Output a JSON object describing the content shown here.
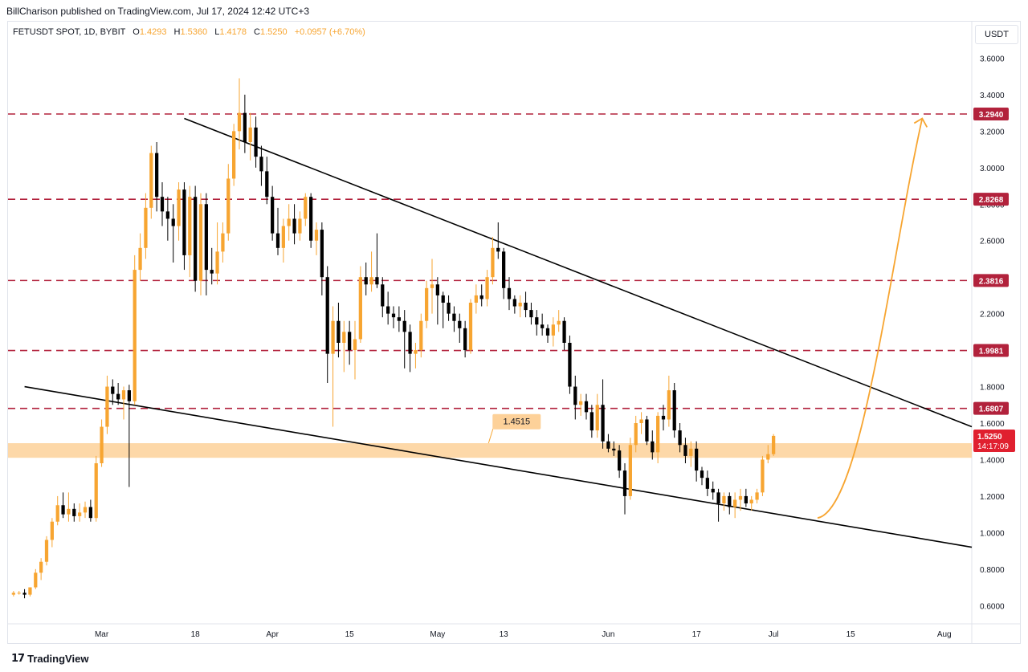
{
  "header": {
    "publisher": "BillCharison published on TradingView.com, Jul 17, 2024 12:42 UTC+3"
  },
  "symbol": {
    "name": "FETUSDT SPOT, 1D, BYBIT",
    "open_label": "O",
    "open": "1.4293",
    "high_label": "H",
    "high": "1.5360",
    "low_label": "L",
    "low": "1.4178",
    "close_label": "C",
    "close": "1.5250",
    "change": "+0.0957 (+6.70%)"
  },
  "unit": "USDT",
  "footer": {
    "brand": "TradingView",
    "logo_glyph": "17"
  },
  "chart_data": {
    "type": "candlestick",
    "y_ticks": [
      "3.6000",
      "3.4000",
      "3.2000",
      "3.0000",
      "2.8000",
      "2.6000",
      "2.4000",
      "2.2000",
      "2.0000",
      "1.8000",
      "1.6000",
      "1.4000",
      "1.2000",
      "1.0000",
      "0.8000",
      "0.6000"
    ],
    "ylim": [
      0.5,
      3.8
    ],
    "x_ticks": [
      {
        "label": "Mar",
        "day": 0
      },
      {
        "label": "18",
        "day": 17
      },
      {
        "label": "Apr",
        "day": 31
      },
      {
        "label": "15",
        "day": 45
      },
      {
        "label": "May",
        "day": 61
      },
      {
        "label": "13",
        "day": 73
      },
      {
        "label": "Jun",
        "day": 92
      },
      {
        "label": "17",
        "day": 108
      },
      {
        "label": "Jul",
        "day": 122
      },
      {
        "label": "15",
        "day": 136
      },
      {
        "label": "Aug",
        "day": 153
      }
    ],
    "x_range_days": [
      -17,
      158
    ],
    "bullish_color": "#f7a531",
    "bearish_color": "#000000",
    "candles_start_day": -16,
    "candles": [
      [
        0.66,
        0.68,
        0.65,
        0.67
      ],
      [
        0.67,
        0.68,
        0.66,
        0.67
      ],
      [
        0.67,
        0.69,
        0.64,
        0.66
      ],
      [
        0.66,
        0.7,
        0.65,
        0.7
      ],
      [
        0.7,
        0.8,
        0.69,
        0.78
      ],
      [
        0.78,
        0.86,
        0.74,
        0.84
      ],
      [
        0.84,
        0.98,
        0.82,
        0.96
      ],
      [
        0.96,
        1.08,
        0.92,
        1.06
      ],
      [
        1.06,
        1.2,
        1.04,
        1.15
      ],
      [
        1.15,
        1.22,
        1.08,
        1.1
      ],
      [
        1.1,
        1.22,
        1.06,
        1.13
      ],
      [
        1.13,
        1.16,
        1.06,
        1.09
      ],
      [
        1.09,
        1.16,
        1.06,
        1.11
      ],
      [
        1.11,
        1.17,
        1.08,
        1.14
      ],
      [
        1.14,
        1.18,
        1.06,
        1.08
      ],
      [
        1.08,
        1.42,
        1.06,
        1.38
      ],
      [
        1.38,
        1.62,
        1.36,
        1.58
      ],
      [
        1.58,
        1.86,
        1.54,
        1.8
      ],
      [
        1.8,
        1.84,
        1.7,
        1.76
      ],
      [
        1.76,
        1.82,
        1.7,
        1.73
      ],
      [
        1.73,
        1.8,
        1.62,
        1.78
      ],
      [
        1.78,
        1.81,
        1.25,
        1.72
      ],
      [
        1.72,
        2.52,
        1.7,
        2.44
      ],
      [
        2.44,
        2.64,
        2.38,
        2.56
      ],
      [
        2.56,
        2.86,
        2.5,
        2.78
      ],
      [
        2.78,
        3.12,
        2.72,
        3.08
      ],
      [
        3.08,
        3.14,
        2.76,
        2.84
      ],
      [
        2.84,
        2.92,
        2.68,
        2.76
      ],
      [
        2.76,
        2.84,
        2.6,
        2.72
      ],
      [
        2.72,
        2.8,
        2.48,
        2.68
      ],
      [
        2.68,
        2.92,
        2.6,
        2.88
      ],
      [
        2.88,
        2.92,
        2.44,
        2.52
      ],
      [
        2.52,
        2.9,
        2.4,
        2.84
      ],
      [
        2.84,
        2.9,
        2.32,
        2.38
      ],
      [
        2.38,
        2.86,
        2.3,
        2.8
      ],
      [
        2.8,
        2.86,
        2.3,
        2.44
      ],
      [
        2.44,
        2.56,
        2.36,
        2.42
      ],
      [
        2.42,
        2.7,
        2.36,
        2.54
      ],
      [
        2.54,
        2.7,
        2.48,
        2.64
      ],
      [
        2.64,
        3.02,
        2.6,
        2.94
      ],
      [
        2.94,
        3.24,
        2.9,
        3.2
      ],
      [
        3.2,
        3.49,
        3.1,
        3.3
      ],
      [
        3.3,
        3.4,
        3.08,
        3.14
      ],
      [
        3.14,
        3.3,
        3.04,
        3.22
      ],
      [
        3.22,
        3.28,
        3.0,
        3.06
      ],
      [
        3.06,
        3.12,
        2.9,
        2.98
      ],
      [
        2.98,
        3.06,
        2.8,
        2.84
      ],
      [
        2.84,
        2.9,
        2.6,
        2.64
      ],
      [
        2.64,
        2.78,
        2.52,
        2.56
      ],
      [
        2.56,
        2.72,
        2.48,
        2.68
      ],
      [
        2.68,
        2.8,
        2.6,
        2.72
      ],
      [
        2.72,
        2.8,
        2.58,
        2.64
      ],
      [
        2.64,
        2.76,
        2.6,
        2.72
      ],
      [
        2.72,
        2.86,
        2.68,
        2.84
      ],
      [
        2.84,
        2.86,
        2.56,
        2.6
      ],
      [
        2.6,
        2.7,
        2.52,
        2.66
      ],
      [
        2.66,
        2.7,
        2.3,
        2.4
      ],
      [
        2.4,
        2.46,
        1.82,
        1.98
      ],
      [
        1.98,
        2.24,
        1.58,
        2.16
      ],
      [
        2.16,
        2.26,
        1.96,
        2.04
      ],
      [
        2.04,
        2.16,
        1.88,
        2.1
      ],
      [
        2.1,
        2.16,
        1.92,
        2.0
      ],
      [
        2.0,
        2.16,
        1.84,
        2.06
      ],
      [
        2.06,
        2.46,
        2.04,
        2.4
      ],
      [
        2.4,
        2.48,
        2.3,
        2.36
      ],
      [
        2.36,
        2.54,
        2.32,
        2.4
      ],
      [
        2.4,
        2.64,
        2.34,
        2.36
      ],
      [
        2.36,
        2.4,
        2.18,
        2.24
      ],
      [
        2.24,
        2.32,
        2.14,
        2.2
      ],
      [
        2.2,
        2.24,
        2.12,
        2.18
      ],
      [
        2.18,
        2.24,
        2.1,
        2.16
      ],
      [
        2.16,
        2.22,
        1.9,
        2.1
      ],
      [
        2.1,
        2.14,
        1.88,
        1.98
      ],
      [
        1.98,
        2.04,
        1.9,
        2.0
      ],
      [
        2.0,
        2.2,
        1.96,
        2.16
      ],
      [
        2.16,
        2.38,
        2.12,
        2.34
      ],
      [
        2.34,
        2.5,
        2.2,
        2.36
      ],
      [
        2.36,
        2.4,
        2.14,
        2.3
      ],
      [
        2.3,
        2.32,
        2.12,
        2.26
      ],
      [
        2.26,
        2.3,
        2.16,
        2.2
      ],
      [
        2.2,
        2.24,
        2.1,
        2.16
      ],
      [
        2.16,
        2.2,
        2.04,
        2.12
      ],
      [
        2.12,
        2.16,
        1.96,
        2.0
      ],
      [
        2.0,
        2.28,
        1.98,
        2.26
      ],
      [
        2.26,
        2.36,
        2.2,
        2.3
      ],
      [
        2.3,
        2.36,
        2.24,
        2.28
      ],
      [
        2.28,
        2.44,
        2.24,
        2.4
      ],
      [
        2.4,
        2.62,
        2.36,
        2.56
      ],
      [
        2.56,
        2.7,
        2.5,
        2.54
      ],
      [
        2.54,
        2.56,
        2.28,
        2.34
      ],
      [
        2.34,
        2.4,
        2.22,
        2.28
      ],
      [
        2.28,
        2.3,
        2.2,
        2.24
      ],
      [
        2.24,
        2.3,
        2.18,
        2.26
      ],
      [
        2.26,
        2.32,
        2.18,
        2.22
      ],
      [
        2.22,
        2.26,
        2.14,
        2.18
      ],
      [
        2.18,
        2.22,
        2.08,
        2.14
      ],
      [
        2.14,
        2.2,
        2.08,
        2.12
      ],
      [
        2.12,
        2.14,
        2.04,
        2.08
      ],
      [
        2.08,
        2.18,
        2.02,
        2.14
      ],
      [
        2.14,
        2.22,
        2.1,
        2.16
      ],
      [
        2.16,
        2.18,
        2.0,
        2.04
      ],
      [
        2.04,
        2.08,
        1.76,
        1.8
      ],
      [
        1.8,
        1.86,
        1.62,
        1.7
      ],
      [
        1.7,
        1.76,
        1.64,
        1.72
      ],
      [
        1.72,
        1.76,
        1.62,
        1.66
      ],
      [
        1.66,
        1.7,
        1.52,
        1.56
      ],
      [
        1.56,
        1.76,
        1.52,
        1.7
      ],
      [
        1.7,
        1.84,
        1.46,
        1.5
      ],
      [
        1.5,
        1.54,
        1.44,
        1.46
      ],
      [
        1.46,
        1.5,
        1.42,
        1.45
      ],
      [
        1.45,
        1.48,
        1.3,
        1.34
      ],
      [
        1.34,
        1.38,
        1.1,
        1.2
      ],
      [
        1.2,
        1.52,
        1.18,
        1.48
      ],
      [
        1.48,
        1.64,
        1.44,
        1.6
      ],
      [
        1.6,
        1.66,
        1.54,
        1.62
      ],
      [
        1.62,
        1.64,
        1.48,
        1.5
      ],
      [
        1.5,
        1.56,
        1.4,
        1.44
      ],
      [
        1.44,
        1.66,
        1.38,
        1.64
      ],
      [
        1.64,
        1.7,
        1.56,
        1.62
      ],
      [
        1.62,
        1.86,
        1.58,
        1.78
      ],
      [
        1.78,
        1.82,
        1.52,
        1.56
      ],
      [
        1.56,
        1.6,
        1.44,
        1.48
      ],
      [
        1.48,
        1.52,
        1.38,
        1.42
      ],
      [
        1.42,
        1.5,
        1.36,
        1.46
      ],
      [
        1.46,
        1.5,
        1.28,
        1.34
      ],
      [
        1.34,
        1.36,
        1.26,
        1.3
      ],
      [
        1.3,
        1.34,
        1.2,
        1.24
      ],
      [
        1.24,
        1.28,
        1.18,
        1.22
      ],
      [
        1.22,
        1.24,
        1.06,
        1.16
      ],
      [
        1.16,
        1.22,
        1.12,
        1.2
      ],
      [
        1.2,
        1.22,
        1.1,
        1.14
      ],
      [
        1.14,
        1.22,
        1.08,
        1.18
      ],
      [
        1.18,
        1.24,
        1.12,
        1.2
      ],
      [
        1.2,
        1.24,
        1.14,
        1.16
      ],
      [
        1.16,
        1.2,
        1.12,
        1.18
      ],
      [
        1.18,
        1.24,
        1.16,
        1.22
      ],
      [
        1.22,
        1.42,
        1.2,
        1.4
      ],
      [
        1.4,
        1.48,
        1.38,
        1.43
      ],
      [
        1.43,
        1.54,
        1.42,
        1.53
      ]
    ],
    "horizontal_levels": [
      {
        "value": 3.294,
        "label": "3.2940"
      },
      {
        "value": 2.8268,
        "label": "2.8268"
      },
      {
        "value": 2.3816,
        "label": "2.3816"
      },
      {
        "value": 1.9981,
        "label": "1.9981"
      },
      {
        "value": 1.6807,
        "label": "1.6807"
      }
    ],
    "level_color": "#b2223c",
    "zone": {
      "low": 1.41,
      "high": 1.49,
      "label": "1.4515",
      "color": "#fdd199"
    },
    "current_price": {
      "value": 1.525,
      "label": "1.5250",
      "countdown": "14:17:09",
      "color": "#e0202f"
    },
    "trendlines": [
      {
        "from": [
          -14,
          1.8
        ],
        "to": [
          158,
          0.92
        ]
      },
      {
        "from": [
          15,
          3.27
        ],
        "to": [
          158,
          1.58
        ]
      }
    ],
    "projection_arrow": {
      "from": [
        130,
        1.08
      ],
      "to": [
        149,
        3.27
      ],
      "color": "#f7a531"
    }
  }
}
